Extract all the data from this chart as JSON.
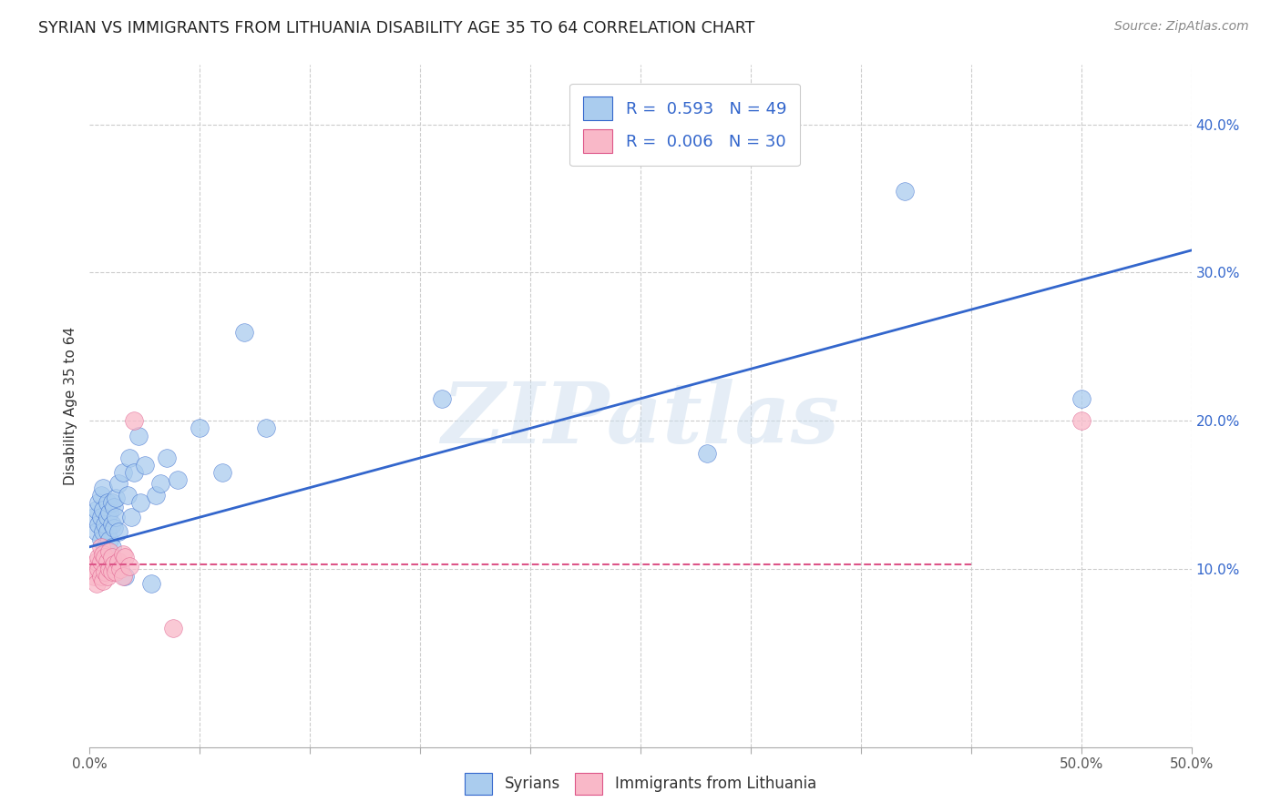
{
  "title": "SYRIAN VS IMMIGRANTS FROM LITHUANIA DISABILITY AGE 35 TO 64 CORRELATION CHART",
  "source": "Source: ZipAtlas.com",
  "ylabel": "Disability Age 35 to 64",
  "xlim": [
    0.0,
    0.5
  ],
  "ylim": [
    -0.02,
    0.44
  ],
  "xtick_positions": [
    0.0,
    0.05,
    0.1,
    0.15,
    0.2,
    0.25,
    0.3,
    0.35,
    0.4,
    0.45,
    0.5
  ],
  "xtick_labels_shown": {
    "0.0": "0.0%",
    "0.5": "50.0%"
  },
  "yticks": [
    0.1,
    0.2,
    0.3,
    0.4
  ],
  "ytick_labels": [
    "10.0%",
    "20.0%",
    "30.0%",
    "40.0%"
  ],
  "background_color": "#ffffff",
  "grid_color": "#cccccc",
  "syrian_color": "#aaccee",
  "lithuania_color": "#f9b8c8",
  "line_syrian_color": "#3366cc",
  "line_lithuania_color": "#dd5588",
  "R_syrian": 0.593,
  "N_syrian": 49,
  "R_lithuania": 0.006,
  "N_lithuania": 30,
  "watermark": "ZIPatlas",
  "syrian_line_start_x": 0.0,
  "syrian_line_start_y": 0.115,
  "syrian_line_end_x": 0.5,
  "syrian_line_end_y": 0.315,
  "lithuania_line_y": 0.103,
  "syrian_points_x": [
    0.002,
    0.003,
    0.003,
    0.004,
    0.004,
    0.005,
    0.005,
    0.005,
    0.006,
    0.006,
    0.006,
    0.007,
    0.007,
    0.008,
    0.008,
    0.008,
    0.009,
    0.009,
    0.01,
    0.01,
    0.01,
    0.011,
    0.011,
    0.012,
    0.012,
    0.013,
    0.013,
    0.015,
    0.016,
    0.017,
    0.018,
    0.019,
    0.02,
    0.022,
    0.023,
    0.025,
    0.028,
    0.03,
    0.032,
    0.035,
    0.04,
    0.05,
    0.06,
    0.07,
    0.08,
    0.16,
    0.28,
    0.37,
    0.45
  ],
  "syrian_points_y": [
    0.135,
    0.14,
    0.125,
    0.13,
    0.145,
    0.12,
    0.135,
    0.15,
    0.125,
    0.14,
    0.155,
    0.115,
    0.13,
    0.125,
    0.135,
    0.145,
    0.12,
    0.138,
    0.115,
    0.13,
    0.145,
    0.128,
    0.142,
    0.135,
    0.148,
    0.125,
    0.158,
    0.165,
    0.095,
    0.15,
    0.175,
    0.135,
    0.165,
    0.19,
    0.145,
    0.17,
    0.09,
    0.15,
    0.158,
    0.175,
    0.16,
    0.195,
    0.165,
    0.26,
    0.195,
    0.215,
    0.178,
    0.355,
    0.215
  ],
  "lithuania_points_x": [
    0.001,
    0.002,
    0.003,
    0.003,
    0.004,
    0.004,
    0.005,
    0.005,
    0.005,
    0.006,
    0.006,
    0.007,
    0.007,
    0.008,
    0.008,
    0.009,
    0.009,
    0.01,
    0.01,
    0.011,
    0.012,
    0.013,
    0.014,
    0.015,
    0.015,
    0.016,
    0.018,
    0.02,
    0.038,
    0.45
  ],
  "lithuania_points_y": [
    0.1,
    0.095,
    0.105,
    0.09,
    0.1,
    0.108,
    0.095,
    0.105,
    0.115,
    0.092,
    0.11,
    0.098,
    0.108,
    0.095,
    0.105,
    0.1,
    0.112,
    0.098,
    0.108,
    0.103,
    0.098,
    0.105,
    0.1,
    0.11,
    0.095,
    0.108,
    0.102,
    0.2,
    0.06,
    0.2
  ]
}
